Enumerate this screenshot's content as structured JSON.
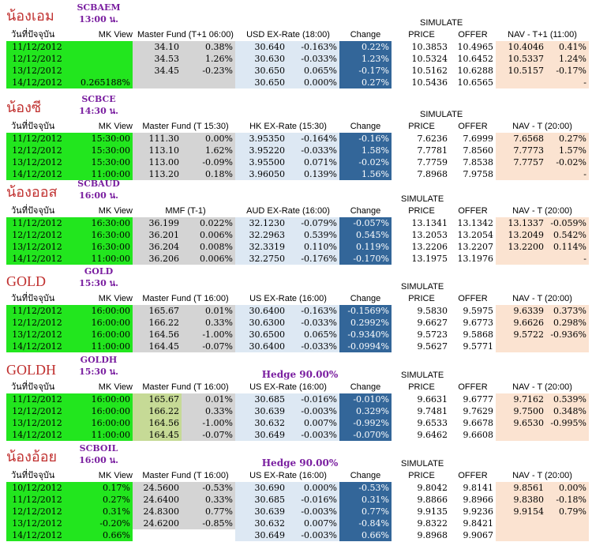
{
  "sections": [
    {
      "title": "น้องเอม",
      "code": "SCBAEM",
      "time": "13:00 น.",
      "hedge": "",
      "simulate": "SIMULATE",
      "headers": [
        "วันที่ปัจจุบัน",
        "MK View",
        "Master Fund (T+1 06:00)",
        "USD EX-Rate (18:00)",
        "Change",
        "PRICE",
        "OFFER",
        "NAV - T+1 (11:00)"
      ],
      "rows": [
        [
          "11/12/2012",
          "",
          "34.10",
          "0.38%",
          "30.640",
          "-0.163%",
          "0.22%",
          "10.3853",
          "10.4965",
          "10.4046",
          "0.41%"
        ],
        [
          "12/12/2012",
          "",
          "34.53",
          "1.26%",
          "30.630",
          "-0.033%",
          "1.23%",
          "10.5324",
          "10.6452",
          "10.5337",
          "1.24%"
        ],
        [
          "13/12/2012",
          "",
          "34.45",
          "-0.23%",
          "30.650",
          "0.065%",
          "-0.17%",
          "10.5162",
          "10.6288",
          "10.5157",
          "-0.17%"
        ],
        [
          "14/12/2012",
          "0.265188%",
          "",
          "",
          "30.650",
          "0.000%",
          "0.27%",
          "10.5436",
          "10.6565",
          "",
          "-"
        ]
      ]
    },
    {
      "title": "น้องซี",
      "code": "SCBCE",
      "time": "14:30 น.",
      "hedge": "",
      "simulate": "SIMULATE",
      "headers": [
        "วันที่ปัจจุบัน",
        "MK View",
        "Master Fund (T 15:30)",
        "HK EX-Rate (15:30)",
        "Change",
        "PRICE",
        "OFFER",
        "NAV - T (20:00)"
      ],
      "rows": [
        [
          "11/12/2012",
          "15:30:00",
          "111.30",
          "0.00%",
          "3.95350",
          "-0.164%",
          "-0.16%",
          "7.6236",
          "7.6999",
          "7.6568",
          "0.27%"
        ],
        [
          "12/12/2012",
          "15:30:00",
          "113.10",
          "1.62%",
          "3.95220",
          "-0.033%",
          "1.58%",
          "7.7781",
          "7.8560",
          "7.7773",
          "1.57%"
        ],
        [
          "13/12/2012",
          "15:30:00",
          "113.00",
          "-0.09%",
          "3.95500",
          "0.071%",
          "-0.02%",
          "7.7759",
          "7.8538",
          "7.7757",
          "-0.02%"
        ],
        [
          "14/12/2012",
          "11:00:00",
          "113.20",
          "0.18%",
          "3.96050",
          "0.139%",
          "1.56%",
          "7.8968",
          "7.9758",
          "",
          "-"
        ]
      ]
    },
    {
      "title": "น้องออส",
      "code": "SCBAUD",
      "time": "16:00 น.",
      "hedge": "",
      "simulate": "SIMULATE",
      "headers": [
        "วันที่ปัจจุบัน",
        "MK View",
        "MMF (T-1)",
        "AUD EX-Rate (16:00)",
        "Change",
        "PRICE",
        "OFFER",
        "NAV - T (20:00)"
      ],
      "rows": [
        [
          "11/12/2012",
          "16:30:00",
          "36.199",
          "0.022%",
          "32.1230",
          "-0.079%",
          "-0.057%",
          "13.1341",
          "13.1342",
          "13.1337",
          "-0.059%"
        ],
        [
          "12/12/2012",
          "16:30:00",
          "36.201",
          "0.006%",
          "32.2963",
          "0.539%",
          "0.545%",
          "13.2053",
          "13.2054",
          "13.2049",
          "0.542%"
        ],
        [
          "13/12/2012",
          "16:30:00",
          "36.204",
          "0.008%",
          "32.3319",
          "0.110%",
          "0.119%",
          "13.2206",
          "13.2207",
          "13.2200",
          "0.114%"
        ],
        [
          "14/12/2012",
          "11:00:00",
          "36.206",
          "0.006%",
          "32.2750",
          "-0.176%",
          "-0.170%",
          "13.1975",
          "13.1976",
          "",
          "-"
        ]
      ]
    },
    {
      "title": "GOLD",
      "code": "GOLD",
      "time": "15:30 น.",
      "hedge": "",
      "simulate": "SIMULATE",
      "headers": [
        "วันที่ปัจจุบัน",
        "MK View",
        "Master Fund (T 16:00)",
        "US EX-Rate (16:00)",
        "Change",
        "PRICE",
        "OFFER",
        "NAV - T (20:00)"
      ],
      "rows": [
        [
          "11/12/2012",
          "16:00:00",
          "165.67",
          "0.01%",
          "30.6400",
          "-0.163%",
          "-0.1569%",
          "9.5830",
          "9.5975",
          "9.6339",
          "0.373%"
        ],
        [
          "12/12/2012",
          "16:00:00",
          "166.22",
          "0.33%",
          "30.6300",
          "-0.033%",
          "0.2992%",
          "9.6627",
          "9.6773",
          "9.6626",
          "0.298%"
        ],
        [
          "13/12/2012",
          "16:00:00",
          "164.56",
          "-1.00%",
          "30.6500",
          "0.065%",
          "-0.9340%",
          "9.5723",
          "9.5868",
          "9.5722",
          "-0.936%"
        ],
        [
          "14/12/2012",
          "11:00:00",
          "164.45",
          "-0.07%",
          "30.6400",
          "-0.033%",
          "-0.0994%",
          "9.5627",
          "9.5771",
          "",
          ""
        ]
      ]
    },
    {
      "title": "GOLDH",
      "code": "GOLDH",
      "time": "15:30 น.",
      "hedge": "Hedge 90.00%",
      "simulate": "SIMULATE",
      "headers": [
        "วันที่ปัจจุบัน",
        "MK View",
        "Master Fund (T 16:00)",
        "US EX-Rate (16:00)",
        "Change",
        "PRICE",
        "OFFER",
        "NAV - T (20:00)"
      ],
      "rows": [
        [
          "11/12/2012",
          "16:00:00",
          "165.67",
          "0.01%",
          "30.685",
          "-0.016%",
          "-0.010%",
          "9.6631",
          "9.6777",
          "9.7162",
          "0.539%"
        ],
        [
          "12/12/2012",
          "16:00:00",
          "166.22",
          "0.33%",
          "30.639",
          "-0.003%",
          "0.329%",
          "9.7481",
          "9.7629",
          "9.7500",
          "0.348%"
        ],
        [
          "13/12/2012",
          "16:00:00",
          "164.56",
          "-1.00%",
          "30.632",
          "0.007%",
          "-0.992%",
          "9.6533",
          "9.6678",
          "9.6530",
          "-0.995%"
        ],
        [
          "14/12/2012",
          "11:00:00",
          "164.45",
          "-0.07%",
          "30.649",
          "-0.003%",
          "-0.070%",
          "9.6462",
          "9.6608",
          "",
          ""
        ]
      ]
    },
    {
      "title": "น้องอ้อย",
      "code": "SCBOIL",
      "time": "16:00 น.",
      "hedge": "Hedge 90.00%",
      "simulate": "SIMULATE",
      "headers": [
        "วันที่ปัจจุบัน",
        "MK View",
        "Master Fund (T 16:00)",
        "US EX-Rate (16:00)",
        "Change",
        "PRICE",
        "OFFER",
        "NAV - T (20:00)"
      ],
      "rows": [
        [
          "10/12/2012",
          "0.17%",
          "24.5600",
          "-0.53%",
          "30.690",
          "0.000%",
          "-0.53%",
          "9.8042",
          "9.8141",
          "9.8561",
          "0.00%"
        ],
        [
          "11/12/2012",
          "0.27%",
          "24.6400",
          "0.33%",
          "30.685",
          "-0.016%",
          "0.31%",
          "9.8866",
          "9.8966",
          "9.8380",
          "-0.18%"
        ],
        [
          "12/12/2012",
          "0.31%",
          "24.8300",
          "0.77%",
          "30.639",
          "-0.003%",
          "0.77%",
          "9.9135",
          "9.9236",
          "9.9154",
          "0.79%"
        ],
        [
          "13/12/2012",
          "-0.20%",
          "24.6200",
          "-0.85%",
          "30.632",
          "0.007%",
          "-0.84%",
          "9.8322",
          "9.8421",
          "",
          ""
        ],
        [
          "14/12/2012",
          "0.66%",
          "",
          "",
          "30.649",
          "-0.003%",
          "0.66%",
          "9.8968",
          "9.9067",
          "",
          ""
        ]
      ]
    }
  ]
}
